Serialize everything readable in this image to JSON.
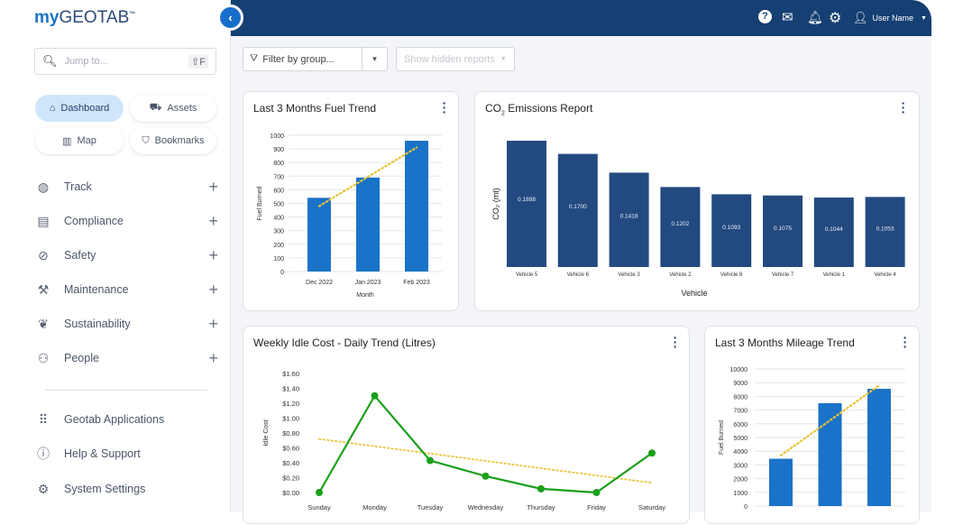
{
  "brand": {
    "logo_my": "my",
    "logo_geotab": "GEOTAB",
    "tm": "™"
  },
  "search": {
    "placeholder": "Jump to...",
    "shortcut": "⇧F"
  },
  "quick_nav": [
    {
      "label": "Dashboard",
      "icon": "home-icon",
      "active": true
    },
    {
      "label": "Assets",
      "icon": "truck-icon"
    },
    {
      "label": "Map",
      "icon": "map-icon"
    },
    {
      "label": "Bookmarks",
      "icon": "bookmark-icon"
    }
  ],
  "nav": [
    {
      "label": "Track",
      "icon": "globe-icon"
    },
    {
      "label": "Compliance",
      "icon": "clipboard-icon"
    },
    {
      "label": "Safety",
      "icon": "bandage-icon"
    },
    {
      "label": "Maintenance",
      "icon": "wrench-icon"
    },
    {
      "label": "Sustainability",
      "icon": "leaf-icon"
    },
    {
      "label": "People",
      "icon": "people-icon"
    }
  ],
  "footer_nav": [
    {
      "label": "Geotab Applications",
      "icon": "grid-icon"
    },
    {
      "label": "Help & Support",
      "icon": "help-icon"
    },
    {
      "label": "System Settings",
      "icon": "gear-icon"
    }
  ],
  "header": {
    "user_name": "User Name"
  },
  "toolbar": {
    "filter_label": "Filter by group...",
    "hidden_reports_label": "Show hidden reports"
  },
  "colors": {
    "header": "#163f73",
    "bar_blue": "#1a73c8",
    "bar_navy": "#234a80",
    "line_green": "#1aa01a",
    "trend": "#e8c33a"
  },
  "chart_data": [
    {
      "id": "fuel",
      "type": "bar",
      "title": "Last 3 Months Fuel Trend",
      "xlabel": "Month",
      "ylabel": "Fuel Burned",
      "categories": [
        "Dec 2022",
        "Jan 2023",
        "Feb 2023"
      ],
      "values": [
        541,
        690,
        960
      ],
      "ylim": [
        0,
        1000
      ],
      "yticks": [
        0,
        100,
        200,
        300,
        400,
        500,
        600,
        700,
        800,
        900,
        1000
      ],
      "trendline": [
        480,
        910
      ],
      "grid": true
    },
    {
      "id": "co2",
      "type": "bar",
      "title": "CO₂ Emissions Report",
      "title_main": "CO",
      "title_sub": "2",
      "title_rest": " Emissions Report",
      "xlabel": "Vehicle",
      "ylabel": "CO₂ (mt)",
      "categories": [
        "Vehicle 5",
        "Vehicle 6",
        "Vehicle 3",
        "Vehicle 2",
        "Vehicle 8",
        "Vehicle 7",
        "Vehicle 1",
        "Vehicle 4"
      ],
      "values": [
        0.1898,
        0.17,
        0.1418,
        0.1202,
        0.1093,
        0.1075,
        0.1044,
        0.1053
      ],
      "labels": [
        "0.1898",
        "0.1700",
        "0.1418",
        "0.1202",
        "0.1093",
        "0.1075",
        "0.1044",
        "0.1053"
      ],
      "grid": false
    },
    {
      "id": "idle",
      "type": "line",
      "title": "Weekly Idle Cost - Daily Trend (Litres)",
      "ylabel": "Idle Cost",
      "categories": [
        "Sunday",
        "Monday",
        "Tuesday",
        "Wednesday",
        "Thursday",
        "Friday",
        "Saturday"
      ],
      "values": [
        0.0,
        1.3,
        0.43,
        0.22,
        0.05,
        0.0,
        0.53
      ],
      "ylim": [
        0,
        1.6
      ],
      "yticks": [
        "$0.00",
        "$0.20",
        "$0.40",
        "$0.60",
        "$0.80",
        "$1.00",
        "$1.20",
        "$1.40",
        "$1.60"
      ],
      "trendline": [
        0.72,
        0.13
      ],
      "grid": false
    },
    {
      "id": "mileage",
      "type": "bar",
      "title": "Last 3 Months Mileage Trend",
      "ylabel": "Fuel Burned",
      "values": [
        3450,
        7500,
        8550
      ],
      "ylim": [
        0,
        10000
      ],
      "yticks": [
        0,
        1000,
        2000,
        3000,
        4000,
        5000,
        6000,
        7000,
        8000,
        9000,
        10000
      ],
      "trendline": [
        3700,
        8800
      ],
      "grid": true
    }
  ]
}
